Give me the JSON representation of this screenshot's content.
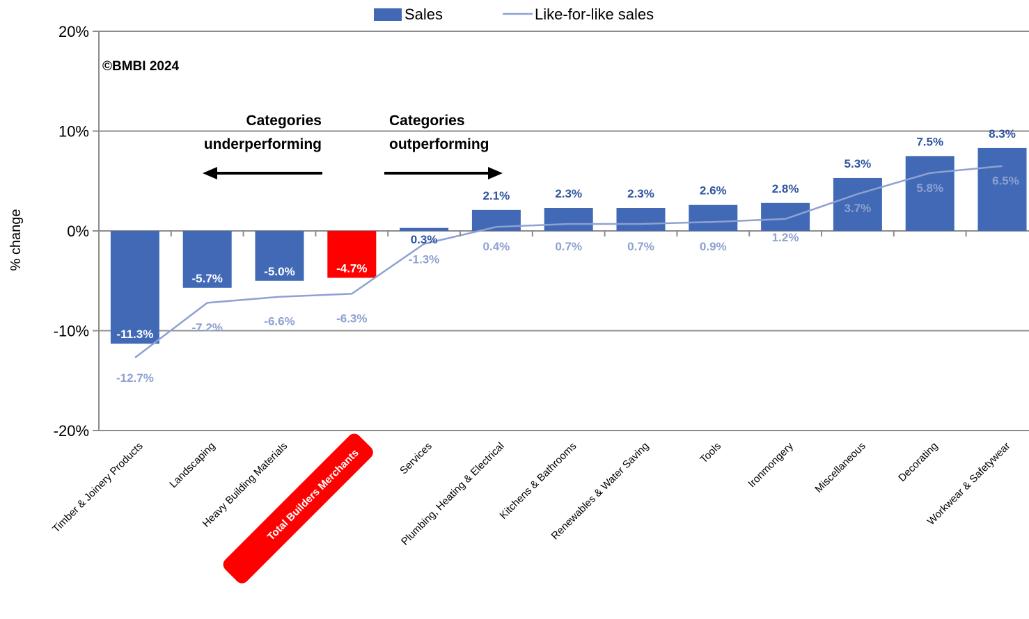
{
  "chart_data": {
    "type": "bar",
    "copyright": "©BMBI 2024",
    "ylabel": "% change",
    "ylim": [
      -20,
      20
    ],
    "yticks": [
      "20%",
      "10%",
      "0%",
      "-10%",
      "-20%"
    ],
    "ytick_values": [
      20,
      10,
      0,
      -10,
      -20
    ],
    "categories": [
      "Timber & Joinery Products",
      "Landscaping",
      "Heavy Building Materials",
      "Total Builders Merchants",
      "Services",
      "Plumbing, Heating & Electrical",
      "Kitchens & Bathrooms",
      "Renewables & Water Saving",
      "Tools",
      "Ironmongery",
      "Miscellaneous",
      "Decorating",
      "Workwear & Safetywear"
    ],
    "highlight_category": "Total Builders Merchants",
    "series": [
      {
        "name": "Sales",
        "kind": "bar",
        "color": "#4169b5",
        "highlight_color": "#ff0000",
        "values": [
          -11.3,
          -5.7,
          -5.0,
          -4.7,
          0.3,
          2.1,
          2.3,
          2.3,
          2.6,
          2.8,
          5.3,
          7.5,
          8.3
        ],
        "labels": [
          "-11.3%",
          "-5.7%",
          "-5.0%",
          "-4.7%",
          "0.3%",
          "2.1%",
          "2.3%",
          "2.3%",
          "2.6%",
          "2.8%",
          "5.3%",
          "7.5%",
          "8.3%"
        ]
      },
      {
        "name": "Like-for-like sales",
        "kind": "line",
        "color": "#8ea1d2",
        "values": [
          -12.7,
          -7.2,
          -6.6,
          -6.3,
          -1.3,
          0.4,
          0.7,
          0.7,
          0.9,
          1.2,
          3.7,
          5.8,
          6.5
        ],
        "labels": [
          "-12.7%",
          "-7.2%",
          "-6.6%",
          "-6.3%",
          "-1.3%",
          "0.4%",
          "0.7%",
          "0.7%",
          "0.9%",
          "1.2%",
          "3.7%",
          "5.8%",
          "6.5%"
        ]
      }
    ],
    "annotations": {
      "left_text": [
        "Categories",
        "underperforming"
      ],
      "right_text": [
        "Categories",
        "outperforming"
      ]
    },
    "legend_position": "top-center",
    "grid": true
  }
}
